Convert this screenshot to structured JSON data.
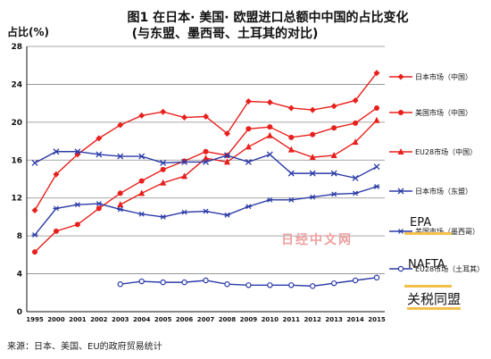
{
  "title_line1": "图1  在日本· 美国· 欧盟进口总额中中国的占比变化",
  "title_line2": "(与东盟、墨西哥、土耳其的对比)",
  "y_axis_label": "占比(%)",
  "annotations": {
    "epa": "EPA",
    "nafta": "NAFTA",
    "tariff_union": "关税同盟",
    "watermark": "日经中文网"
  },
  "source": "来源：日本、美国、EU的政府贸易统计",
  "colors": {
    "china": "#e8201c",
    "other": "#2b3aa7",
    "highlight": "#f3c049"
  },
  "chart_data": {
    "type": "line",
    "title": "图1  在日本· 美国· 欧盟进口总额中中国的占比变化",
    "subtitle": "(与东盟、墨西哥、土耳其的对比)",
    "xlabel": "",
    "ylabel": "占比(%)",
    "ylim": [
      0,
      28
    ],
    "yticks": [
      0,
      4,
      8,
      12,
      16,
      20,
      24,
      28
    ],
    "categories": [
      "1995",
      "2000",
      "2001",
      "2002",
      "2003",
      "2004",
      "2005",
      "2006",
      "2007",
      "2008",
      "2009",
      "2010",
      "2011",
      "2012",
      "2013",
      "2014",
      "2015"
    ],
    "grid": "horizontal",
    "legend_position": "right",
    "series": [
      {
        "name": "日本市场（中国）",
        "color": "#e8201c",
        "marker": "diamond",
        "values": [
          10.7,
          14.5,
          16.6,
          18.3,
          19.7,
          20.7,
          21.1,
          20.5,
          20.6,
          18.8,
          22.2,
          22.1,
          21.5,
          21.3,
          21.7,
          22.3,
          25.2
        ]
      },
      {
        "name": "美国市场（中国）",
        "color": "#e8201c",
        "marker": "circle",
        "values": [
          6.3,
          8.5,
          9.2,
          10.9,
          12.5,
          13.8,
          15.0,
          15.9,
          16.9,
          16.5,
          19.3,
          19.5,
          18.4,
          18.7,
          19.4,
          19.9,
          21.5
        ]
      },
      {
        "name": "EU28市场（中国）",
        "color": "#e8201c",
        "marker": "triangle",
        "values": [
          null,
          null,
          null,
          null,
          11.3,
          12.5,
          13.6,
          14.3,
          16.2,
          15.8,
          17.4,
          18.6,
          17.1,
          16.3,
          16.5,
          17.9,
          20.2
        ]
      },
      {
        "name": "日本市场（东盟）",
        "color": "#2b3aa7",
        "marker": "x",
        "values": [
          15.7,
          16.9,
          16.9,
          16.6,
          16.4,
          16.4,
          15.7,
          15.8,
          15.8,
          16.5,
          15.8,
          16.6,
          14.6,
          14.6,
          14.6,
          14.1,
          15.3
        ]
      },
      {
        "name": "美国市场（墨西哥）",
        "color": "#2b3aa7",
        "marker": "star",
        "values": [
          8.1,
          10.9,
          11.3,
          11.4,
          10.8,
          10.3,
          10.0,
          10.5,
          10.6,
          10.2,
          11.1,
          11.8,
          11.8,
          12.1,
          12.4,
          12.5,
          13.2
        ]
      },
      {
        "name": "EU28市场（土耳其）",
        "color": "#2b3aa7",
        "marker": "open-circle",
        "values": [
          null,
          null,
          null,
          null,
          2.9,
          3.2,
          3.1,
          3.1,
          3.3,
          2.9,
          2.8,
          2.8,
          2.8,
          2.7,
          3.0,
          3.3,
          3.6
        ]
      }
    ]
  }
}
